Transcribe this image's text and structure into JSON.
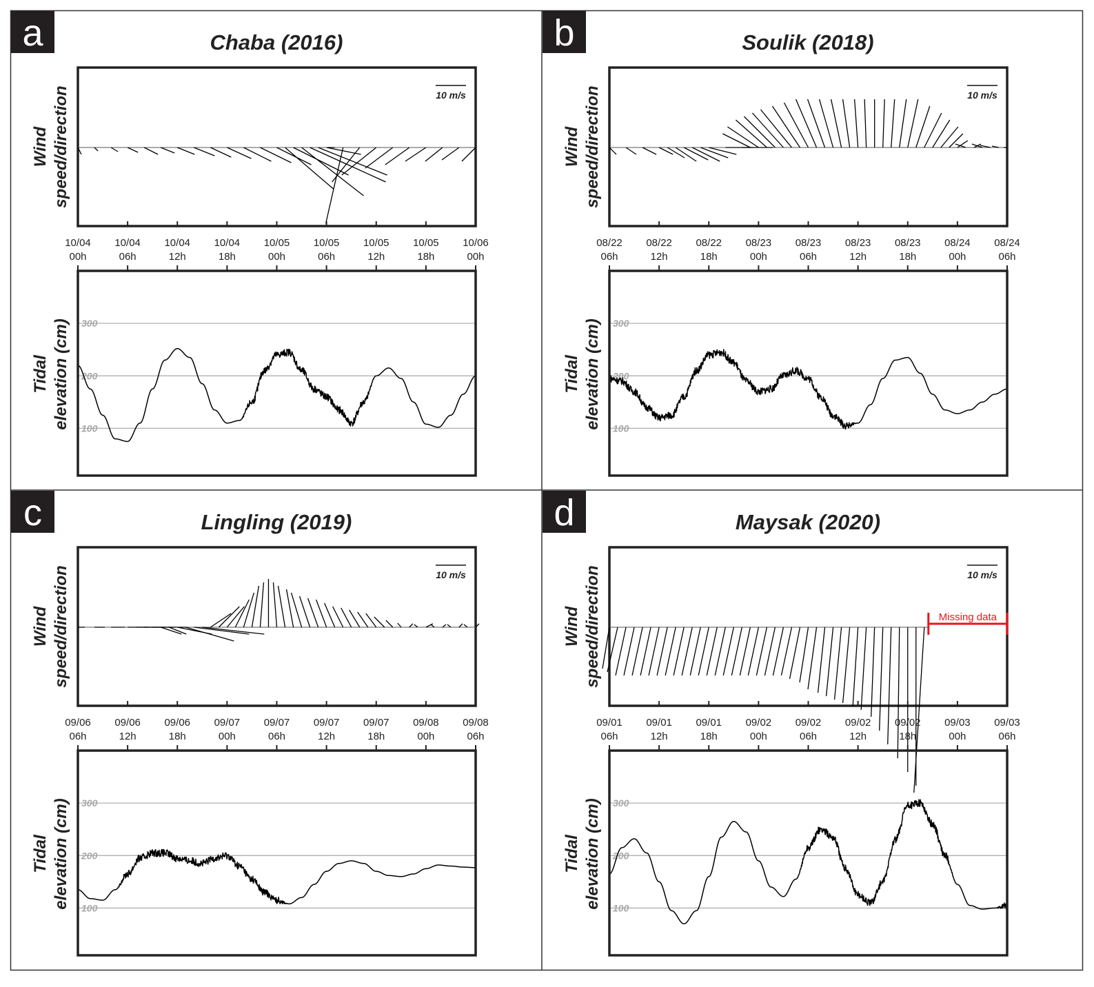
{
  "figure": {
    "colors": {
      "line": "#000000",
      "frame": "#222222",
      "grid": "#b0b0b0",
      "label_bg": "#231f20",
      "missing": "#e8161c"
    },
    "wind_scale_label": "10 m/s",
    "wind_ylabel": [
      "Wind",
      "speed/direction"
    ],
    "tide_ylabel": [
      "Tidal",
      "elevation (cm)"
    ]
  },
  "chart_data": [
    {
      "panel": "a",
      "title": "Chaba (2016)",
      "type": "line",
      "wind": {
        "type": "wind-vector",
        "scale": "10 m/s",
        "x_ticks": [
          [
            "10/04",
            "00h"
          ],
          [
            "10/04",
            "06h"
          ],
          [
            "10/04",
            "12h"
          ],
          [
            "10/04",
            "18h"
          ],
          [
            "10/05",
            "00h"
          ],
          [
            "10/05",
            "06h"
          ],
          [
            "10/05",
            "12h"
          ],
          [
            "10/05",
            "18h"
          ],
          [
            "10/06",
            "00h"
          ]
        ],
        "hours": [
          0,
          2,
          4,
          6,
          8,
          10,
          12,
          14,
          16,
          18,
          20,
          22,
          24,
          25,
          26,
          27,
          28,
          29,
          30,
          31,
          32,
          34,
          36,
          38,
          40,
          42,
          44,
          46,
          48
        ],
        "u": [
          1,
          1,
          2,
          3,
          4,
          4,
          5,
          6,
          6,
          7,
          8,
          9,
          10,
          14,
          16,
          18,
          22,
          20,
          10,
          -2,
          -5,
          -8,
          -10,
          -8,
          -7,
          -6,
          -5,
          -5,
          -4
        ],
        "v": [
          -1,
          -0.5,
          -0.6,
          -0.7,
          -1,
          -0.8,
          -1,
          -1.2,
          -1.4,
          -1.6,
          -2,
          -2.2,
          -2.5,
          -6,
          -4,
          -7,
          -5,
          -4,
          -1,
          0,
          -11,
          -5,
          -4,
          -3,
          -2.5,
          -2,
          -2,
          -1.8,
          -2
        ]
      },
      "tide": {
        "ylabel": "Tidal elevation (cm)",
        "y_ticks": [
          100,
          200,
          300
        ],
        "y_range": [
          10,
          400
        ],
        "x_range_h": [
          0,
          48
        ],
        "t": [
          0,
          1.5,
          3,
          4.5,
          6,
          7.5,
          9,
          10.5,
          12,
          13.5,
          15,
          16.5,
          18,
          19.5,
          21,
          22.5,
          24,
          25.5,
          27,
          28.5,
          30,
          31.5,
          33,
          34.5,
          36,
          37.5,
          39,
          40.5,
          42,
          43.5,
          45,
          46.5,
          48
        ],
        "y": [
          220,
          175,
          125,
          80,
          75,
          110,
          175,
          230,
          252,
          235,
          185,
          135,
          110,
          115,
          150,
          210,
          240,
          245,
          210,
          175,
          160,
          135,
          110,
          150,
          200,
          215,
          195,
          150,
          108,
          102,
          125,
          165,
          200
        ],
        "noise": [
          0,
          0,
          0,
          0,
          0,
          0,
          0,
          0,
          0,
          0,
          0,
          0,
          0,
          0,
          1,
          1,
          1,
          1,
          1,
          1,
          1,
          1,
          1,
          1,
          0,
          0,
          0,
          0,
          0,
          0,
          0,
          0,
          0
        ]
      }
    },
    {
      "panel": "b",
      "title": "Soulik (2018)",
      "type": "line",
      "wind": {
        "type": "wind-vector",
        "scale": "10 m/s",
        "x_ticks": [
          [
            "08/22",
            "06h"
          ],
          [
            "08/22",
            "12h"
          ],
          [
            "08/22",
            "18h"
          ],
          [
            "08/23",
            "00h"
          ],
          [
            "08/23",
            "06h"
          ],
          [
            "08/23",
            "12h"
          ],
          [
            "08/23",
            "18h"
          ],
          [
            "08/24",
            "00h"
          ],
          [
            "08/24",
            "06h"
          ]
        ],
        "hours": [
          0,
          2,
          4,
          6,
          7,
          8,
          9,
          10,
          11,
          12,
          14,
          16,
          17,
          18,
          19,
          20,
          21,
          22,
          23,
          24,
          25,
          26,
          27,
          28,
          29,
          30,
          31,
          32,
          33,
          34,
          35,
          36,
          37,
          38,
          39,
          40,
          41,
          42,
          43,
          44,
          45,
          46,
          47,
          48
        ],
        "u": [
          2,
          3,
          4,
          4,
          5,
          6,
          7,
          8,
          8,
          8,
          8,
          9,
          -8,
          -9,
          -9,
          -9,
          -9,
          -9,
          -8,
          -7,
          -6,
          -5,
          -4,
          -3,
          -2,
          -1,
          -0.5,
          0,
          0.5,
          1,
          2,
          3,
          4,
          5,
          5,
          5,
          4,
          3,
          -3,
          2,
          -3,
          -3,
          -2,
          -1
        ],
        "v": [
          -1,
          -1,
          -1,
          -1,
          -1.5,
          -2,
          -1.8,
          -2,
          -1.5,
          -1,
          0,
          0,
          2,
          3,
          4,
          4.5,
          5,
          5.5,
          6,
          6.5,
          7,
          7,
          7,
          7,
          7,
          7,
          7,
          7,
          7,
          7,
          7,
          7,
          6,
          5,
          4,
          3,
          2,
          1,
          0.5,
          0.5,
          0.5,
          0.3,
          0.2,
          0
        ]
      },
      "tide": {
        "ylabel": "Tidal elevation (cm)",
        "y_ticks": [
          100,
          200,
          300
        ],
        "y_range": [
          10,
          400
        ],
        "x_range_h": [
          0,
          48
        ],
        "t": [
          0,
          1.5,
          3,
          4.5,
          6,
          7.5,
          9,
          10.5,
          12,
          13.5,
          15,
          16.5,
          18,
          19.5,
          21,
          22.5,
          24,
          25.5,
          27,
          28.5,
          30,
          31.5,
          33,
          34.5,
          36,
          37.5,
          39,
          40.5,
          42,
          43.5,
          45,
          46.5,
          48
        ],
        "y": [
          195,
          190,
          170,
          140,
          120,
          125,
          160,
          210,
          240,
          245,
          225,
          190,
          170,
          175,
          200,
          210,
          195,
          160,
          125,
          105,
          110,
          145,
          195,
          230,
          235,
          205,
          165,
          135,
          128,
          135,
          150,
          165,
          175
        ],
        "noise": [
          1,
          1,
          1,
          1,
          1,
          1,
          1,
          1,
          1,
          1,
          1,
          1,
          1,
          1,
          1,
          1,
          1,
          1,
          1,
          1,
          0,
          0,
          0,
          0,
          0,
          0,
          0,
          0,
          0,
          0,
          0,
          0,
          0
        ]
      }
    },
    {
      "panel": "c",
      "title": "Lingling (2019)",
      "type": "line",
      "wind": {
        "type": "wind-vector",
        "scale": "10 m/s",
        "x_ticks": [
          [
            "09/06",
            "06h"
          ],
          [
            "09/06",
            "12h"
          ],
          [
            "09/06",
            "18h"
          ],
          [
            "09/07",
            "00h"
          ],
          [
            "09/07",
            "06h"
          ],
          [
            "09/07",
            "12h"
          ],
          [
            "09/07",
            "18h"
          ],
          [
            "09/08",
            "00h"
          ],
          [
            "09/08",
            "06h"
          ]
        ],
        "hours": [
          0,
          2,
          4,
          6,
          7,
          8,
          9,
          10,
          11,
          12,
          13,
          14,
          15,
          16,
          17,
          18,
          19,
          20,
          21,
          22,
          23,
          24,
          25,
          26,
          27,
          28,
          29,
          30,
          31,
          32,
          33,
          34,
          35,
          36,
          37,
          38,
          39,
          40,
          41,
          42,
          43,
          44,
          45,
          46,
          47,
          48
        ],
        "u": [
          2,
          3,
          4,
          6,
          8,
          9,
          10,
          6,
          5,
          10,
          14,
          16,
          18,
          6,
          6,
          5,
          4,
          3,
          2,
          1,
          0,
          -1,
          -2,
          -2,
          -3,
          -3,
          -3,
          -3,
          -3,
          -3,
          -3,
          -3,
          -3,
          -3,
          -3,
          -2,
          -1,
          1,
          -1,
          2,
          -1,
          1,
          -1,
          1,
          -1,
          1
        ],
        "v": [
          0,
          0,
          0,
          0,
          0,
          0,
          0,
          -1,
          -1,
          -1,
          -2,
          -1,
          -1,
          2,
          3,
          3,
          4,
          5,
          6,
          6.5,
          7,
          6.5,
          6,
          5.5,
          5,
          4.5,
          4.2,
          4,
          3.5,
          3,
          2.8,
          2.5,
          2.2,
          2,
          1.5,
          1,
          0.6,
          0.5,
          0.4,
          0.5,
          0.4,
          0.4,
          0.4,
          0.5,
          0.4,
          0.5
        ]
      },
      "tide": {
        "ylabel": "Tidal elevation (cm)",
        "y_ticks": [
          100,
          200,
          300
        ],
        "y_range": [
          10,
          400
        ],
        "x_range_h": [
          0,
          48
        ],
        "t": [
          0,
          1.5,
          3,
          4.5,
          6,
          7.5,
          9,
          10.5,
          12,
          13.5,
          15,
          16.5,
          18,
          19.5,
          21,
          22.5,
          24,
          25.5,
          27,
          28.5,
          30,
          31.5,
          33,
          34.5,
          36,
          37.5,
          39,
          40.5,
          42,
          43.5,
          45,
          46.5,
          48
        ],
        "y": [
          135,
          118,
          115,
          135,
          165,
          195,
          205,
          205,
          195,
          190,
          185,
          195,
          200,
          180,
          155,
          130,
          115,
          108,
          120,
          145,
          170,
          185,
          190,
          185,
          170,
          162,
          160,
          165,
          175,
          182,
          180,
          178,
          177
        ],
        "noise": [
          0,
          0,
          0,
          0,
          1,
          1,
          1,
          1,
          1,
          1,
          1,
          1,
          1,
          1,
          1,
          1,
          1,
          0,
          0,
          0,
          0,
          0,
          0,
          0,
          0,
          0,
          0,
          0,
          0,
          0,
          0,
          0,
          0
        ]
      }
    },
    {
      "panel": "d",
      "title": "Maysak (2020)",
      "type": "line",
      "wind": {
        "type": "wind-vector",
        "scale": "10 m/s",
        "missing_label": "Missing data",
        "missing_from_h": 38.5,
        "x_ticks": [
          [
            "09/01",
            "06h"
          ],
          [
            "09/01",
            "12h"
          ],
          [
            "09/01",
            "18h"
          ],
          [
            "09/02",
            "00h"
          ],
          [
            "09/02",
            "06h"
          ],
          [
            "09/02",
            "12h"
          ],
          [
            "09/02",
            "18h"
          ],
          [
            "09/03",
            "00h"
          ],
          [
            "09/03",
            "06h"
          ]
        ],
        "hours": [
          0,
          1,
          2,
          3,
          4,
          5,
          6,
          7,
          8,
          9,
          10,
          11,
          12,
          13,
          14,
          15,
          16,
          17,
          18,
          19,
          20,
          21,
          22,
          23,
          24,
          25,
          26,
          27,
          28,
          29,
          30,
          31,
          32,
          33,
          34,
          35,
          36,
          37,
          38
        ],
        "u": [
          -2,
          -3,
          -3,
          -3,
          -3,
          -3,
          -3,
          -3,
          -3,
          -3,
          -3,
          -3,
          -3,
          -3,
          -3,
          -3,
          -3,
          -3,
          -3,
          -3,
          -3,
          -3,
          -3,
          -3,
          -2.5,
          -2.5,
          -2,
          -2,
          -2,
          -2,
          -1.5,
          -1.5,
          -1,
          -1,
          -1,
          -0.5,
          0,
          0,
          -3
        ],
        "v": [
          -6,
          -6.5,
          -7,
          -7,
          -7,
          -7,
          -7,
          -7,
          -7,
          -7,
          -7,
          -7,
          -7,
          -7,
          -7,
          -7,
          -7,
          -7,
          -7,
          -7,
          -7,
          -7,
          -7,
          -7.5,
          -8,
          -9,
          -9.5,
          -10,
          -10.5,
          -11,
          -11.5,
          -12,
          -13,
          -15,
          -17,
          -19,
          -21,
          -23,
          -24
        ]
      },
      "tide": {
        "ylabel": "Tidal elevation (cm)",
        "y_ticks": [
          100,
          200,
          300
        ],
        "y_range": [
          10,
          400
        ],
        "x_range_h": [
          0,
          48
        ],
        "t": [
          0,
          1.5,
          3,
          4.5,
          6,
          7.5,
          9,
          10.5,
          12,
          13.5,
          15,
          16.5,
          18,
          19.5,
          21,
          22.5,
          24,
          25.5,
          27,
          28.5,
          30,
          31.5,
          33,
          34.5,
          36,
          37.5,
          39,
          40.5,
          42,
          43.5,
          45,
          46.5,
          48
        ],
        "y": [
          165,
          215,
          232,
          205,
          150,
          95,
          70,
          95,
          160,
          235,
          265,
          245,
          190,
          140,
          122,
          155,
          215,
          250,
          235,
          175,
          125,
          110,
          150,
          230,
          295,
          300,
          260,
          200,
          145,
          105,
          98,
          100,
          105
        ],
        "noise": [
          0,
          0,
          0,
          0,
          0,
          0,
          0,
          0,
          0,
          0,
          0,
          0,
          0,
          0,
          0,
          0,
          1,
          1,
          1,
          1,
          1,
          1,
          1,
          1,
          1,
          1,
          1,
          1,
          0,
          0,
          0,
          0,
          1
        ]
      }
    }
  ]
}
